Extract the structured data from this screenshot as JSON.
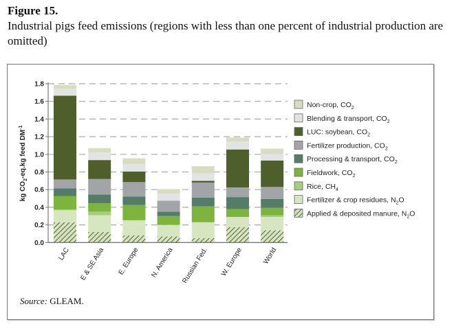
{
  "figure": {
    "label": "Figure 15.",
    "title": "Industrial pigs feed emissions (regions with less than one percent of industrial production are omitted)",
    "source_prefix": "Source:",
    "source_text": " GLEAM."
  },
  "chart_data": {
    "type": "bar",
    "stacked": true,
    "title": "Industrial pigs feed emissions",
    "xlabel": "",
    "ylabel": "kg CO2-eq.kg feed DM-1",
    "ylabel_parts": {
      "pre": "kg CO",
      "sub": "2",
      "mid": "-eq.kg feed DM",
      "sup": "-1"
    },
    "ylim": [
      0,
      1.8
    ],
    "yticks": [
      "0.0",
      "0.2",
      "0.4",
      "0.6",
      "0.8",
      "1.0",
      "1.2",
      "1.4",
      "1.6",
      "1.8"
    ],
    "grid": "dashed horizontal",
    "legend_position": "right",
    "categories": [
      "LAC",
      "E & SE Asia",
      "E. Europe",
      "N. America",
      "Russian Fed.",
      "W. Europe",
      "World"
    ],
    "series": [
      {
        "name": "Applied & deposited manure, N2O",
        "legend_main": "Applied & deposited manure, N",
        "legend_sub": "2",
        "legend_tail": "O",
        "color": "#d5e4bd",
        "hatch": true,
        "values": [
          0.23,
          0.12,
          0.08,
          0.07,
          0.05,
          0.175,
          0.14
        ]
      },
      {
        "name": "Fertilizer & crop residues, N2O",
        "legend_main": "Fertilizer & crop residues, N",
        "legend_sub": "2",
        "legend_tail": "O",
        "color": "#d6e6c0",
        "hatch": false,
        "values": [
          0.135,
          0.19,
          0.17,
          0.13,
          0.18,
          0.115,
          0.15
        ]
      },
      {
        "name": "Rice, CH4",
        "legend_main": "Rice, CH",
        "legend_sub": "4",
        "legend_tail": "",
        "color": "#a6cc7e",
        "hatch": false,
        "values": [
          0.01,
          0.04,
          0.005,
          0.0,
          0.0,
          0.0,
          0.02
        ]
      },
      {
        "name": "Fieldwork, CO2",
        "legend_main": "Fieldwork, CO",
        "legend_sub": "2",
        "legend_tail": "",
        "color": "#7db43e",
        "hatch": false,
        "values": [
          0.15,
          0.095,
          0.17,
          0.1,
          0.18,
          0.09,
          0.085
        ]
      },
      {
        "name": "Processing & transport, CO2",
        "legend_main": "Processing & transport, CO",
        "legend_sub": "2",
        "legend_tail": "",
        "color": "#557b69",
        "hatch": false,
        "values": [
          0.09,
          0.1,
          0.095,
          0.05,
          0.1,
          0.135,
          0.1
        ]
      },
      {
        "name": "Fertilizer production, CO2",
        "legend_main": "Fertilizer production, CO",
        "legend_sub": "2",
        "legend_tail": "",
        "color": "#a3a4a8",
        "hatch": false,
        "values": [
          0.1,
          0.175,
          0.165,
          0.125,
          0.17,
          0.11,
          0.135
        ]
      },
      {
        "name": "LUC: soybean, CO2",
        "legend_main": "LUC: soybean, CO",
        "legend_sub": "2",
        "legend_tail": "",
        "color": "#4f5f2b",
        "hatch": false,
        "values": [
          0.95,
          0.215,
          0.12,
          0.0,
          0.02,
          0.43,
          0.3
        ]
      },
      {
        "name": "Blending & transport, CO2",
        "legend_main": "Blending & transport, CO",
        "legend_sub": "2",
        "legend_tail": "",
        "color": "#e2e3e5",
        "hatch": false,
        "values": [
          0.08,
          0.085,
          0.085,
          0.08,
          0.085,
          0.09,
          0.075
        ]
      },
      {
        "name": "Non-crop, CO2",
        "legend_main": "Non-crop, CO",
        "legend_sub": "2",
        "legend_tail": "",
        "color": "#d8dcc0",
        "hatch": false,
        "values": [
          0.04,
          0.05,
          0.065,
          0.05,
          0.08,
          0.045,
          0.06
        ]
      }
    ]
  }
}
